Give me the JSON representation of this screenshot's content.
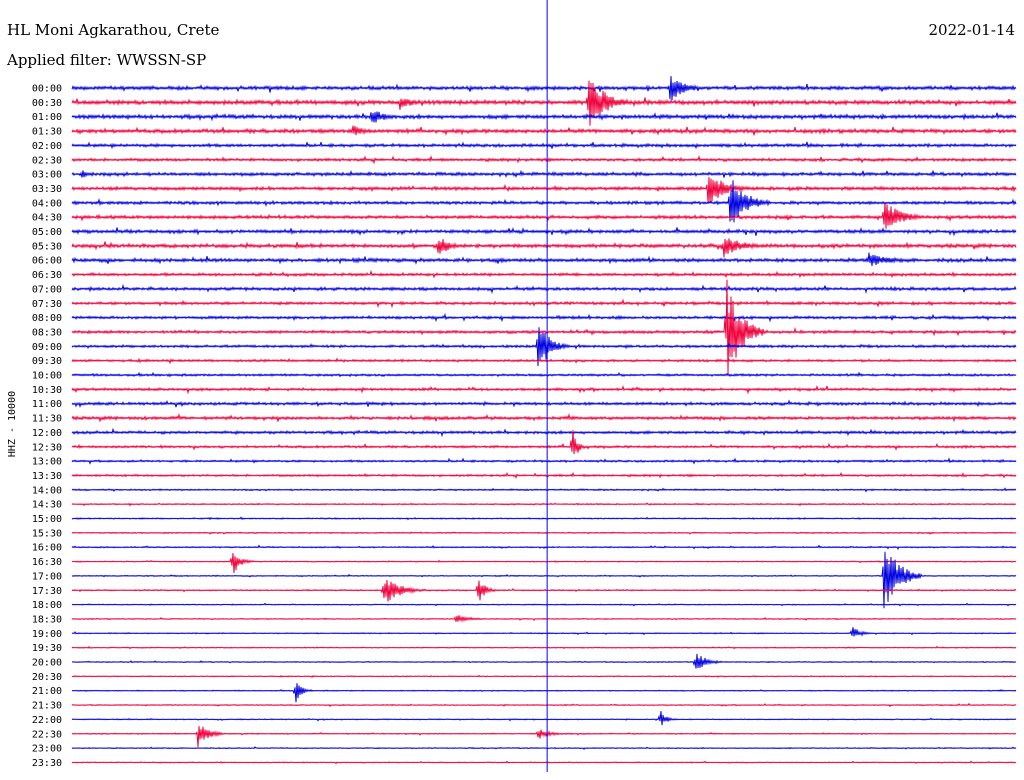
{
  "header": {
    "station": "HL Moni Agkarathou, Crete",
    "date": "2022-01-14",
    "filter": "Applied filter: WWSSN-SP"
  },
  "colors": {
    "blue": "#0000e0",
    "red": "#f0003c",
    "marker": "#0000ff"
  },
  "chart_data": {
    "type": "line",
    "title": "HL Moni Agkarathou, Crete",
    "subtitle": "Applied filter: WWSSN-SP",
    "ylabel": "HHZ - 10000",
    "x_range_minutes": [
      0,
      30
    ],
    "rows": [
      "00:00",
      "00:30",
      "01:00",
      "01:30",
      "02:00",
      "02:30",
      "03:00",
      "03:30",
      "04:00",
      "04:30",
      "05:00",
      "05:30",
      "06:00",
      "06:30",
      "07:00",
      "07:30",
      "08:00",
      "08:30",
      "09:00",
      "09:30",
      "10:00",
      "10:30",
      "11:00",
      "11:30",
      "12:00",
      "12:30",
      "13:00",
      "13:30",
      "14:00",
      "14:30",
      "15:00",
      "15:30",
      "16:00",
      "16:30",
      "17:00",
      "17:30",
      "18:00",
      "18:30",
      "19:00",
      "19:30",
      "20:00",
      "20:30",
      "21:00",
      "21:30",
      "22:00",
      "22:30",
      "23:00",
      "23:30"
    ],
    "row_colors": [
      "blue",
      "red"
    ],
    "noise_levels": [
      1.4,
      1.6,
      1.5,
      1.5,
      1.2,
      1.1,
      1.3,
      1.3,
      1.2,
      1.3,
      1.3,
      1.4,
      1.4,
      1.1,
      1.2,
      1.1,
      1.1,
      1.1,
      1.0,
      0.9,
      0.9,
      1.0,
      1.1,
      1.2,
      1.1,
      0.9,
      0.8,
      0.8,
      0.6,
      0.5,
      0.5,
      0.5,
      0.5,
      0.4,
      0.4,
      0.5,
      0.4,
      0.4,
      0.4,
      0.4,
      0.4,
      0.4,
      0.4,
      0.4,
      0.4,
      0.4,
      0.4,
      0.4
    ],
    "events": [
      {
        "row": 0,
        "minute": 19.0,
        "amplitude": 15,
        "duration": 1.2
      },
      {
        "row": 1,
        "minute": 16.4,
        "amplitude": 35,
        "duration": 1.3
      },
      {
        "row": 1,
        "minute": 10.4,
        "amplitude": 9,
        "duration": 1.0
      },
      {
        "row": 2,
        "minute": 9.5,
        "amplitude": 9,
        "duration": 1.2
      },
      {
        "row": 3,
        "minute": 8.9,
        "amplitude": 7,
        "duration": 1.0
      },
      {
        "row": 6,
        "minute": 0.3,
        "amplitude": 6,
        "duration": 0.6
      },
      {
        "row": 7,
        "minute": 20.2,
        "amplitude": 18,
        "duration": 1.5
      },
      {
        "row": 8,
        "minute": 20.9,
        "amplitude": 30,
        "duration": 1.3
      },
      {
        "row": 9,
        "minute": 25.8,
        "amplitude": 18,
        "duration": 1.4
      },
      {
        "row": 11,
        "minute": 11.6,
        "amplitude": 12,
        "duration": 1.0
      },
      {
        "row": 11,
        "minute": 20.7,
        "amplitude": 12,
        "duration": 1.5
      },
      {
        "row": 12,
        "minute": 25.3,
        "amplitude": 8,
        "duration": 1.8
      },
      {
        "row": 17,
        "minute": 20.8,
        "amplitude": 55,
        "duration": 1.2
      },
      {
        "row": 18,
        "minute": 14.8,
        "amplitude": 30,
        "duration": 1.0
      },
      {
        "row": 25,
        "minute": 15.9,
        "amplitude": 22,
        "duration": 0.4
      },
      {
        "row": 33,
        "minute": 5.1,
        "amplitude": 15,
        "duration": 0.6
      },
      {
        "row": 34,
        "minute": 25.8,
        "amplitude": 40,
        "duration": 1.2
      },
      {
        "row": 35,
        "minute": 9.9,
        "amplitude": 16,
        "duration": 1.3
      },
      {
        "row": 35,
        "minute": 12.9,
        "amplitude": 14,
        "duration": 0.6
      },
      {
        "row": 37,
        "minute": 12.2,
        "amplitude": 6,
        "duration": 1.0
      },
      {
        "row": 38,
        "minute": 24.8,
        "amplitude": 8,
        "duration": 0.6
      },
      {
        "row": 40,
        "minute": 19.8,
        "amplitude": 14,
        "duration": 0.8
      },
      {
        "row": 42,
        "minute": 7.1,
        "amplitude": 14,
        "duration": 0.5
      },
      {
        "row": 44,
        "minute": 18.7,
        "amplitude": 10,
        "duration": 0.5
      },
      {
        "row": 45,
        "minute": 4.0,
        "amplitude": 15,
        "duration": 0.8
      },
      {
        "row": 45,
        "minute": 14.8,
        "amplitude": 6,
        "duration": 1.0
      }
    ],
    "marker_minute": 15.1
  }
}
